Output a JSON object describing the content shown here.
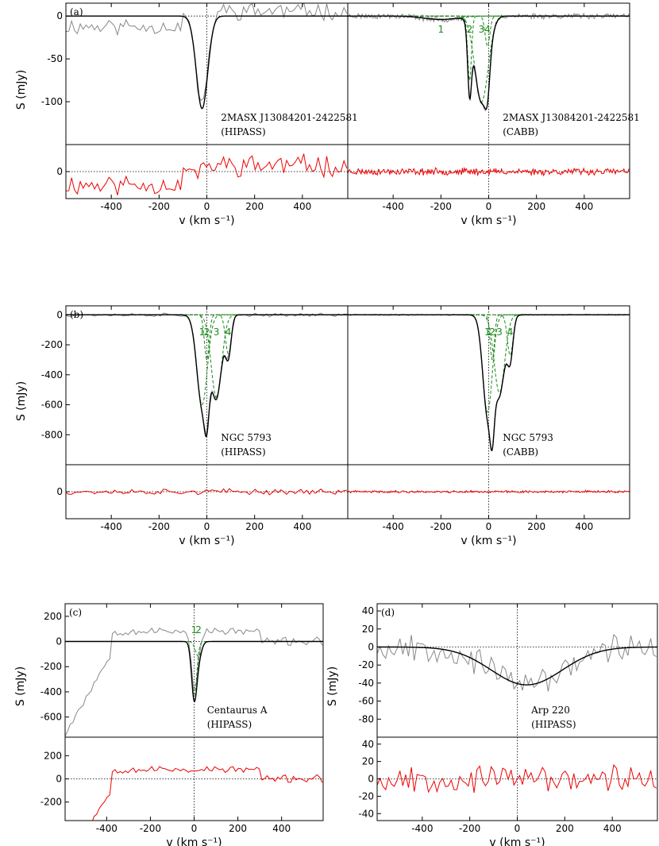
{
  "chart_data": [
    {
      "id": "a-hipass",
      "type": "line",
      "panel_tag": "(a)",
      "source_label": "2MASX J13084201-2422581",
      "telescope_label": "(HIPASS)",
      "ylabel": "S (mJy)",
      "xlabel": "v (km s⁻¹)",
      "xlim": [
        -590,
        590
      ],
      "xticks": [
        -400,
        -200,
        0,
        200,
        400
      ],
      "ylim": [
        -150,
        15
      ],
      "yticks": [
        -100,
        -50,
        0
      ],
      "res_ylim": [
        -25,
        25
      ],
      "res_yticks": [
        0
      ],
      "components": [],
      "noise": {
        "amp": 8,
        "step": 12,
        "seed": 11,
        "offset_left": -12
      },
      "fit": [
        {
          "amp": -108,
          "center": -20,
          "sigma": 24
        }
      ]
    },
    {
      "id": "a-cabb",
      "type": "line",
      "panel_tag": "",
      "source_label": "2MASX J13084201-2422581",
      "telescope_label": "(CABB)",
      "ylabel": "",
      "xlabel": "v (km s⁻¹)",
      "xlim": [
        -590,
        590
      ],
      "xticks": [
        -400,
        -200,
        0,
        200,
        400
      ],
      "ylim": [
        -150,
        15
      ],
      "yticks": [],
      "res_ylim": [
        -25,
        25
      ],
      "res_yticks": [],
      "components": [
        {
          "label": "1",
          "amp": -4,
          "center": -200,
          "sigma": 70
        },
        {
          "label": "2",
          "amp": -75,
          "center": -80,
          "sigma": 8
        },
        {
          "label": "3",
          "amp": -100,
          "center": -30,
          "sigma": 28
        },
        {
          "label": "4",
          "amp": -35,
          "center": -5,
          "sigma": 10
        }
      ],
      "noise": {
        "amp": 2.5,
        "step": 4,
        "seed": 23,
        "offset_left": 0
      },
      "fit": []
    },
    {
      "id": "b-hipass",
      "type": "line",
      "panel_tag": "(b)",
      "source_label": "NGC 5793",
      "telescope_label": "(HIPASS)",
      "ylabel": "S (mJy)",
      "xlabel": "v (km s⁻¹)",
      "xlim": [
        -590,
        590
      ],
      "xticks": [
        -400,
        -200,
        0,
        200,
        400
      ],
      "ylim": [
        -1000,
        60
      ],
      "yticks": [
        -800,
        -600,
        -400,
        -200,
        0
      ],
      "res_ylim": [
        -120,
        120
      ],
      "res_yticks": [
        0
      ],
      "components": [
        {
          "label": "1",
          "amp": -600,
          "center": -20,
          "sigma": 22
        },
        {
          "label": "2",
          "amp": -300,
          "center": 0,
          "sigma": 10
        },
        {
          "label": "3",
          "amp": -550,
          "center": 40,
          "sigma": 22
        },
        {
          "label": "4",
          "amp": -260,
          "center": 90,
          "sigma": 12
        }
      ],
      "noise": {
        "amp": 10,
        "step": 12,
        "seed": 37,
        "offset_left": 0
      },
      "fit": []
    },
    {
      "id": "b-cabb",
      "type": "line",
      "panel_tag": "",
      "source_label": "NGC 5793",
      "telescope_label": "(CABB)",
      "ylabel": "",
      "xlabel": "v (km s⁻¹)",
      "xlim": [
        -590,
        590
      ],
      "xticks": [
        -400,
        -200,
        0,
        200,
        400
      ],
      "ylim": [
        -1000,
        60
      ],
      "yticks": [],
      "res_ylim": [
        -120,
        120
      ],
      "res_yticks": [],
      "components": [
        {
          "label": "1",
          "amp": -650,
          "center": -5,
          "sigma": 20
        },
        {
          "label": "2",
          "amp": -300,
          "center": 15,
          "sigma": 9
        },
        {
          "label": "3",
          "amp": -520,
          "center": 45,
          "sigma": 22
        },
        {
          "label": "4",
          "amp": -270,
          "center": 90,
          "sigma": 12
        }
      ],
      "noise": {
        "amp": 4,
        "step": 4,
        "seed": 41,
        "offset_left": 0
      },
      "fit": []
    },
    {
      "id": "c-hipass",
      "type": "line",
      "panel_tag": "(c)",
      "source_label": "Centaurus A",
      "telescope_label": "(HIPASS)",
      "ylabel": "S (mJy)",
      "xlabel": "v (km s⁻¹)",
      "xlim": [
        -590,
        590
      ],
      "xticks": [
        -400,
        -200,
        0,
        200,
        400
      ],
      "ylim": [
        -760,
        300
      ],
      "yticks": [
        -600,
        -400,
        -200,
        0,
        200
      ],
      "res_ylim": [
        -360,
        360
      ],
      "res_yticks": [
        -200,
        0,
        200
      ],
      "components": [
        {
          "label": "1",
          "amp": -430,
          "center": 0,
          "sigma": 12
        },
        {
          "label": "2",
          "amp": -120,
          "center": 20,
          "sigma": 14
        }
      ],
      "noise": {
        "amp": 25,
        "step": 12,
        "seed": 53,
        "offset_left": 0
      },
      "fit": []
    },
    {
      "id": "d-hipass",
      "type": "line",
      "panel_tag": "(d)",
      "source_label": "Arp 220",
      "telescope_label": "(HIPASS)",
      "ylabel": "S (mJy)",
      "xlabel": "v (km s⁻¹)",
      "xlim": [
        -590,
        590
      ],
      "xticks": [
        -400,
        -200,
        0,
        200,
        400
      ],
      "ylim": [
        -100,
        48
      ],
      "yticks": [
        -80,
        -60,
        -40,
        -20,
        0,
        20,
        40
      ],
      "res_ylim": [
        -48,
        48
      ],
      "res_yticks": [
        -40,
        -20,
        0,
        20,
        40
      ],
      "components": [],
      "noise": {
        "amp": 12,
        "step": 12,
        "seed": 67,
        "offset_left": 0
      },
      "fit": [
        {
          "amp": -42,
          "center": 40,
          "sigma": 150
        }
      ]
    }
  ]
}
